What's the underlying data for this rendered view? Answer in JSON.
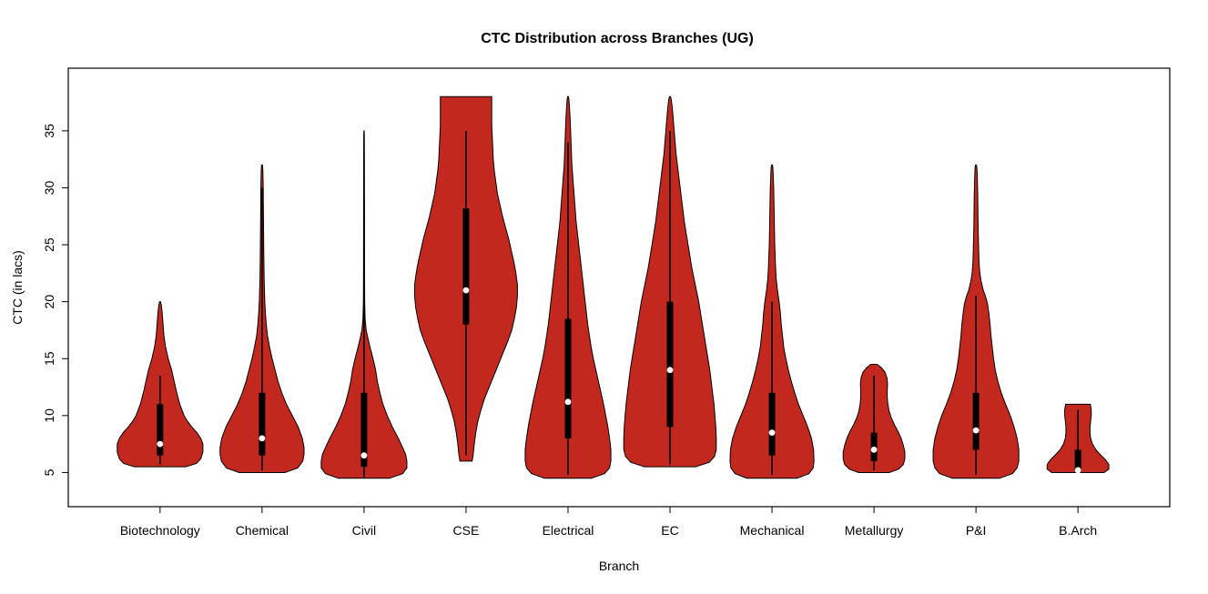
{
  "figure": {
    "background": "#FFFFFF"
  },
  "chart_data": {
    "type": "violin",
    "title": "CTC Distribution across Branches (UG)",
    "xlabel": "Branch",
    "ylabel": "CTC (in lacs)",
    "ylim": [
      2,
      40.5
    ],
    "yticks": [
      5,
      10,
      15,
      20,
      25,
      30,
      35
    ],
    "legend": "none",
    "grid": false,
    "violin_fill": "#C3281E",
    "violin_stroke": "#000000",
    "box_color": "#000000",
    "whisker_color": "#000000",
    "median_dot_color": "#FFFFFF",
    "categories": [
      "Biotechnology",
      "Chemical",
      "Civil",
      "CSE",
      "Electrical",
      "EC",
      "Mechanical",
      "Metallurgy",
      "P&I",
      "B.Arch"
    ],
    "series": [
      {
        "name": "Biotechnology",
        "min": 5.5,
        "max": 20,
        "median": 7.5,
        "q1": 6.5,
        "q3": 11,
        "whisker_low": 5.7,
        "whisker_high": 13.5,
        "scale": 1.0,
        "density": [
          [
            5.5,
            0.6
          ],
          [
            5.8,
            0.85
          ],
          [
            6.2,
            0.95
          ],
          [
            6.8,
            1.0
          ],
          [
            7.5,
            1.0
          ],
          [
            8,
            0.95
          ],
          [
            8.5,
            0.86
          ],
          [
            9,
            0.74
          ],
          [
            9.5,
            0.64
          ],
          [
            10,
            0.56
          ],
          [
            11,
            0.46
          ],
          [
            12,
            0.39
          ],
          [
            13,
            0.33
          ],
          [
            14,
            0.27
          ],
          [
            15,
            0.19
          ],
          [
            16,
            0.13
          ],
          [
            17,
            0.09
          ],
          [
            18,
            0.07
          ],
          [
            19,
            0.05
          ],
          [
            19.7,
            0.03
          ],
          [
            20,
            0.01
          ]
        ]
      },
      {
        "name": "Chemical",
        "min": 5,
        "max": 32,
        "median": 8,
        "q1": 6.5,
        "q3": 12,
        "whisker_low": 5.2,
        "whisker_high": 30,
        "scale": 0.98,
        "density": [
          [
            5,
            0.55
          ],
          [
            5.4,
            0.85
          ],
          [
            6,
            0.97
          ],
          [
            6.6,
            1.0
          ],
          [
            7.2,
            1.0
          ],
          [
            8,
            0.96
          ],
          [
            9,
            0.86
          ],
          [
            10,
            0.72
          ],
          [
            11,
            0.58
          ],
          [
            12,
            0.47
          ],
          [
            13,
            0.38
          ],
          [
            14,
            0.31
          ],
          [
            15,
            0.24
          ],
          [
            16,
            0.18
          ],
          [
            17,
            0.13
          ],
          [
            18,
            0.1
          ],
          [
            19,
            0.08
          ],
          [
            20,
            0.065
          ],
          [
            22,
            0.05
          ],
          [
            24,
            0.042
          ],
          [
            26,
            0.037
          ],
          [
            28,
            0.032
          ],
          [
            30,
            0.028
          ],
          [
            31.5,
            0.02
          ],
          [
            32,
            0.01
          ]
        ]
      },
      {
        "name": "Civil",
        "min": 4.5,
        "max": 35,
        "median": 6.5,
        "q1": 5.5,
        "q3": 12,
        "whisker_low": 4.6,
        "whisker_high": 29,
        "scale": 1.0,
        "density": [
          [
            4.5,
            0.6
          ],
          [
            4.9,
            0.9
          ],
          [
            5.4,
            1.0
          ],
          [
            6,
            1.0
          ],
          [
            6.6,
            0.97
          ],
          [
            7.2,
            0.9
          ],
          [
            8,
            0.8
          ],
          [
            9,
            0.66
          ],
          [
            10,
            0.54
          ],
          [
            11,
            0.44
          ],
          [
            12,
            0.37
          ],
          [
            13,
            0.31
          ],
          [
            14,
            0.27
          ],
          [
            15,
            0.21
          ],
          [
            16,
            0.14
          ],
          [
            16.8,
            0.09
          ],
          [
            17.5,
            0.05
          ],
          [
            18.5,
            0.025
          ],
          [
            20,
            0.015
          ],
          [
            23,
            0.012
          ],
          [
            26,
            0.011
          ],
          [
            29,
            0.01
          ],
          [
            32,
            0.009
          ],
          [
            34.6,
            0.007
          ],
          [
            35,
            0.004
          ]
        ]
      },
      {
        "name": "CSE",
        "min": 6,
        "max": 38,
        "median": 21,
        "q1": 18,
        "q3": 28.2,
        "whisker_low": 6.5,
        "whisker_high": 35,
        "scale": 1.2,
        "density": [
          [
            6,
            0.12
          ],
          [
            6.6,
            0.14
          ],
          [
            7.5,
            0.16
          ],
          [
            8.5,
            0.19
          ],
          [
            9.5,
            0.23
          ],
          [
            10.5,
            0.29
          ],
          [
            11.5,
            0.36
          ],
          [
            12.5,
            0.45
          ],
          [
            13.5,
            0.54
          ],
          [
            14.5,
            0.63
          ],
          [
            15.5,
            0.72
          ],
          [
            16.5,
            0.81
          ],
          [
            17.5,
            0.89
          ],
          [
            18.5,
            0.94
          ],
          [
            19.5,
            0.98
          ],
          [
            20.5,
            1.0
          ],
          [
            21.5,
            1.0
          ],
          [
            22.5,
            0.97
          ],
          [
            23.5,
            0.93
          ],
          [
            24.5,
            0.88
          ],
          [
            25.5,
            0.83
          ],
          [
            26.5,
            0.77
          ],
          [
            27.5,
            0.71
          ],
          [
            28.5,
            0.66
          ],
          [
            29.5,
            0.61
          ],
          [
            30.5,
            0.58
          ],
          [
            31.5,
            0.55
          ],
          [
            32.5,
            0.53
          ],
          [
            33.5,
            0.52
          ],
          [
            34.5,
            0.51
          ],
          [
            35.5,
            0.5
          ],
          [
            36.5,
            0.5
          ],
          [
            37.5,
            0.5
          ],
          [
            38,
            0.5
          ]
        ]
      },
      {
        "name": "Electrical",
        "min": 4.5,
        "max": 38,
        "median": 11.2,
        "q1": 8,
        "q3": 18.5,
        "whisker_low": 4.8,
        "whisker_high": 34,
        "scale": 1.0,
        "density": [
          [
            4.5,
            0.55
          ],
          [
            4.9,
            0.85
          ],
          [
            5.4,
            0.97
          ],
          [
            6,
            1.0
          ],
          [
            7,
            1.0
          ],
          [
            8,
            0.97
          ],
          [
            9,
            0.93
          ],
          [
            10,
            0.88
          ],
          [
            11,
            0.83
          ],
          [
            12,
            0.77
          ],
          [
            13,
            0.71
          ],
          [
            14,
            0.65
          ],
          [
            15,
            0.59
          ],
          [
            16,
            0.54
          ],
          [
            17,
            0.5
          ],
          [
            18,
            0.46
          ],
          [
            19,
            0.43
          ],
          [
            20,
            0.4
          ],
          [
            21,
            0.37
          ],
          [
            22,
            0.34
          ],
          [
            23,
            0.31
          ],
          [
            24,
            0.28
          ],
          [
            25,
            0.25
          ],
          [
            26,
            0.22
          ],
          [
            27,
            0.19
          ],
          [
            28,
            0.17
          ],
          [
            29,
            0.15
          ],
          [
            30,
            0.13
          ],
          [
            31,
            0.11
          ],
          [
            32,
            0.09
          ],
          [
            33,
            0.08
          ],
          [
            34,
            0.07
          ],
          [
            35,
            0.06
          ],
          [
            36,
            0.05
          ],
          [
            37,
            0.035
          ],
          [
            37.8,
            0.02
          ],
          [
            38,
            0.01
          ]
        ]
      },
      {
        "name": "EC",
        "min": 5.5,
        "max": 38,
        "median": 14,
        "q1": 9,
        "q3": 20,
        "whisker_low": 5.7,
        "whisker_high": 35,
        "scale": 1.08,
        "density": [
          [
            5.5,
            0.55
          ],
          [
            5.9,
            0.85
          ],
          [
            6.4,
            0.96
          ],
          [
            7,
            1.0
          ],
          [
            8,
            1.0
          ],
          [
            9,
            0.99
          ],
          [
            10,
            0.97
          ],
          [
            11,
            0.95
          ],
          [
            12,
            0.92
          ],
          [
            13,
            0.89
          ],
          [
            14,
            0.86
          ],
          [
            15,
            0.82
          ],
          [
            16,
            0.78
          ],
          [
            17,
            0.74
          ],
          [
            18,
            0.7
          ],
          [
            19,
            0.66
          ],
          [
            20,
            0.62
          ],
          [
            21,
            0.57
          ],
          [
            22,
            0.52
          ],
          [
            23,
            0.47
          ],
          [
            24,
            0.43
          ],
          [
            25,
            0.39
          ],
          [
            26,
            0.35
          ],
          [
            27,
            0.31
          ],
          [
            28,
            0.28
          ],
          [
            29,
            0.25
          ],
          [
            30,
            0.22
          ],
          [
            31,
            0.19
          ],
          [
            32,
            0.16
          ],
          [
            33,
            0.13
          ],
          [
            34,
            0.11
          ],
          [
            35,
            0.09
          ],
          [
            36,
            0.07
          ],
          [
            37,
            0.05
          ],
          [
            37.8,
            0.025
          ],
          [
            38,
            0.01
          ]
        ]
      },
      {
        "name": "Mechanical",
        "min": 4.5,
        "max": 32,
        "median": 8.5,
        "q1": 6.5,
        "q3": 12,
        "whisker_low": 4.8,
        "whisker_high": 20,
        "scale": 0.98,
        "density": [
          [
            4.5,
            0.6
          ],
          [
            4.9,
            0.88
          ],
          [
            5.4,
            0.98
          ],
          [
            6,
            1.0
          ],
          [
            7,
            0.99
          ],
          [
            8,
            0.94
          ],
          [
            9,
            0.85
          ],
          [
            10,
            0.74
          ],
          [
            11,
            0.63
          ],
          [
            12,
            0.54
          ],
          [
            13,
            0.46
          ],
          [
            14,
            0.39
          ],
          [
            15,
            0.33
          ],
          [
            16,
            0.28
          ],
          [
            17,
            0.25
          ],
          [
            18,
            0.22
          ],
          [
            19,
            0.2
          ],
          [
            20,
            0.17
          ],
          [
            21,
            0.13
          ],
          [
            22,
            0.1
          ],
          [
            23,
            0.085
          ],
          [
            24,
            0.075
          ],
          [
            25,
            0.065
          ],
          [
            26,
            0.06
          ],
          [
            27,
            0.055
          ],
          [
            28,
            0.05
          ],
          [
            29,
            0.045
          ],
          [
            30,
            0.04
          ],
          [
            31,
            0.03
          ],
          [
            31.8,
            0.02
          ],
          [
            32,
            0.01
          ]
        ]
      },
      {
        "name": "Metallurgy",
        "min": 5,
        "max": 14.5,
        "median": 7,
        "q1": 6,
        "q3": 8.5,
        "whisker_low": 5.2,
        "whisker_high": 13.5,
        "scale": 0.72,
        "density": [
          [
            5,
            0.5
          ],
          [
            5.3,
            0.8
          ],
          [
            5.7,
            0.95
          ],
          [
            6.2,
            1.0
          ],
          [
            6.8,
            1.0
          ],
          [
            7.4,
            0.95
          ],
          [
            8,
            0.88
          ],
          [
            8.6,
            0.78
          ],
          [
            9.2,
            0.66
          ],
          [
            9.8,
            0.56
          ],
          [
            10.4,
            0.49
          ],
          [
            11,
            0.45
          ],
          [
            11.6,
            0.43
          ],
          [
            12.2,
            0.43
          ],
          [
            12.8,
            0.44
          ],
          [
            13.3,
            0.42
          ],
          [
            13.8,
            0.36
          ],
          [
            14.2,
            0.24
          ],
          [
            14.5,
            0.1
          ]
        ]
      },
      {
        "name": "P&I",
        "min": 4.5,
        "max": 32,
        "median": 8.7,
        "q1": 7,
        "q3": 12,
        "whisker_low": 4.8,
        "whisker_high": 20.5,
        "scale": 1.0,
        "density": [
          [
            4.5,
            0.55
          ],
          [
            4.9,
            0.85
          ],
          [
            5.4,
            0.96
          ],
          [
            6,
            1.0
          ],
          [
            7,
            1.0
          ],
          [
            8,
            0.96
          ],
          [
            9,
            0.89
          ],
          [
            10,
            0.8
          ],
          [
            11,
            0.69
          ],
          [
            12,
            0.59
          ],
          [
            13,
            0.51
          ],
          [
            14,
            0.45
          ],
          [
            15,
            0.41
          ],
          [
            16,
            0.38
          ],
          [
            17,
            0.35
          ],
          [
            18,
            0.33
          ],
          [
            19,
            0.3
          ],
          [
            19.8,
            0.27
          ],
          [
            20.5,
            0.22
          ],
          [
            21,
            0.17
          ],
          [
            21.8,
            0.12
          ],
          [
            22.5,
            0.09
          ],
          [
            23.5,
            0.07
          ],
          [
            25,
            0.06
          ],
          [
            26.5,
            0.05
          ],
          [
            28,
            0.045
          ],
          [
            29.5,
            0.04
          ],
          [
            31,
            0.03
          ],
          [
            31.8,
            0.02
          ],
          [
            32,
            0.01
          ]
        ]
      },
      {
        "name": "B.Arch",
        "min": 5,
        "max": 11,
        "median": 5.2,
        "q1": 5,
        "q3": 7,
        "whisker_low": 5,
        "whisker_high": 10.5,
        "scale": 0.72,
        "density": [
          [
            5,
            0.85
          ],
          [
            5.3,
            1.0
          ],
          [
            5.7,
            1.0
          ],
          [
            6.1,
            0.9
          ],
          [
            6.5,
            0.75
          ],
          [
            7,
            0.58
          ],
          [
            7.5,
            0.47
          ],
          [
            8,
            0.41
          ],
          [
            8.5,
            0.39
          ],
          [
            9,
            0.39
          ],
          [
            9.5,
            0.41
          ],
          [
            10,
            0.43
          ],
          [
            10.5,
            0.43
          ],
          [
            11,
            0.4
          ]
        ]
      }
    ]
  }
}
